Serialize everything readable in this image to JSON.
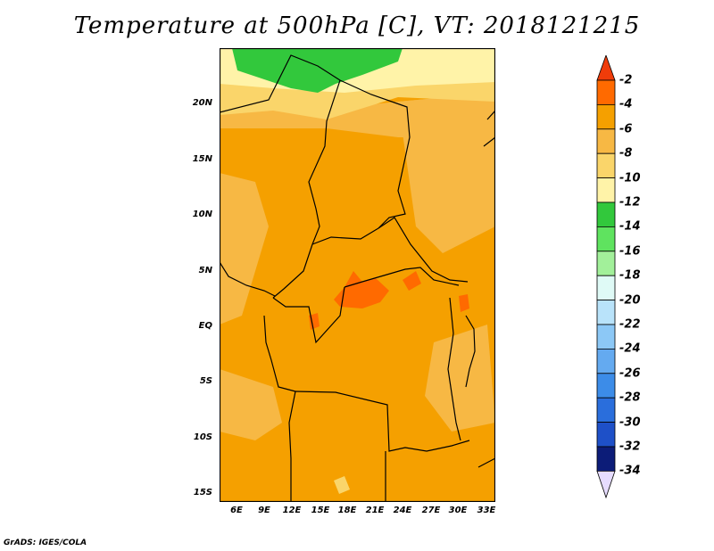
{
  "title": "Temperature at 500hPa [C], VT: 2018121215",
  "credit": "GrADS: IGES/COLA",
  "map": {
    "lon_range": [
      3,
      34
    ],
    "lat_range": [
      -16,
      24
    ],
    "y_ticks": [
      "20N",
      "15N",
      "10N",
      "5N",
      "EQ",
      "5S",
      "10S",
      "15S"
    ],
    "x_ticks": [
      "6E",
      "9E",
      "12E",
      "15E",
      "18E",
      "21E",
      "24E",
      "27E",
      "30E",
      "33E"
    ]
  },
  "colorbar": {
    "labels": [
      "-2",
      "-4",
      "-6",
      "-8",
      "-10",
      "-12",
      "-14",
      "-16",
      "-18",
      "-20",
      "-22",
      "-24",
      "-26",
      "-28",
      "-30",
      "-32",
      "-34"
    ],
    "colors": {
      "gt_-2": "#f03c0a",
      "-2_-4": "#ff6a00",
      "-4_-6": "#f5a000",
      "-6_-8": "#f7b844",
      "-8_-10": "#fad56a",
      "-10_-12": "#fff3a8",
      "-12_-14": "#32c83c",
      "-14_-16": "#5fe35f",
      "-16_-18": "#a2f09a",
      "-18_-20": "#dffaf6",
      "-20_-22": "#b9e3fa",
      "-22_-24": "#8cc8f6",
      "-24_-26": "#64aaf0",
      "-26_-28": "#3c8ce8",
      "-28_-30": "#2a6edc",
      "-30_-32": "#1e50c8",
      "-32_-34": "#0c1c78",
      "lt_-34": "#e6dcff"
    }
  }
}
